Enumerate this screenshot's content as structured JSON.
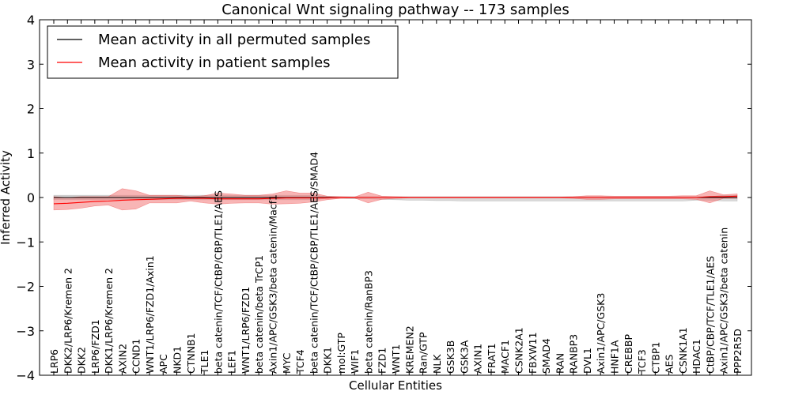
{
  "chart_data": {
    "type": "line",
    "title": "Canonical Wnt signaling pathway -- 173 samples",
    "xlabel": "Cellular Entities",
    "ylabel": "Inferred Activity",
    "ylim": [
      -4,
      4
    ],
    "yticks": [
      "4",
      "3",
      "2",
      "1",
      "0",
      "−1",
      "−2",
      "−3",
      "−4"
    ],
    "grid": false,
    "legend_position": "top-left",
    "categories": [
      "LRP6",
      "DKK2/LRP6/Kremen 2",
      "DKK2",
      "LRP6/FZD1",
      "DKK1/LRP6/Kremen 2",
      "AXIN2",
      "CCND1",
      "WNT1/LRP6/FZD1/Axin1",
      "APC",
      "NKD1",
      "CTNNB1",
      "TLE1",
      "beta catenin/TCF/CtBP/CBP/TLE1/AES",
      "LEF1",
      "WNT1/LRP6/FZD1",
      "beta catenin/beta TrCP1",
      "Axin1/APC/GSK3/beta catenin/Macf1",
      "MYC",
      "TCF4",
      "beta catenin/TCF/CtBP/CBP/TLE1/AES/SMAD4",
      "DKK1",
      "mol:GTP",
      "WIF1",
      "beta catenin/RanBP3",
      "FZD1",
      "WNT1",
      "KREMEN2",
      "Ran/GTP",
      "NLK",
      "GSK3B",
      "GSK3A",
      "AXIN1",
      "FRAT1",
      "MACF1",
      "CSNK2A1",
      "FBXW11",
      "SMAD4",
      "RAN",
      "RANBP3",
      "DVL1",
      "Axin1/APC/GSK3",
      "HNF1A",
      "CREBBP",
      "TCF3",
      "CTBP1",
      "AES",
      "CSNK1A1",
      "HDAC1",
      "CtBP/CBP/TCF/TLE1/AES",
      "Axin1/APC/GSK3/beta catenin",
      "PPP2R5D"
    ],
    "series": [
      {
        "name": "Mean activity in all permuted samples",
        "color": "#000000",
        "values": [
          0.0,
          0.0,
          0.0,
          0.0,
          0.0,
          0.0,
          0.0,
          0.0,
          0.0,
          0.0,
          0.0,
          0.0,
          0.0,
          0.0,
          0.0,
          0.0,
          0.0,
          0.0,
          0.0,
          0.0,
          0.0,
          0.0,
          0.0,
          0.0,
          0.0,
          0.0,
          0.0,
          0.0,
          0.0,
          0.0,
          0.0,
          0.0,
          0.0,
          0.0,
          0.0,
          0.0,
          0.0,
          0.0,
          0.0,
          0.0,
          0.0,
          0.0,
          0.0,
          0.0,
          0.0,
          0.0,
          0.0,
          0.0,
          0.0,
          0.0,
          0.0
        ],
        "band_upper": [
          0.05,
          0.05,
          0.05,
          0.05,
          0.05,
          0.05,
          0.05,
          0.05,
          0.05,
          0.05,
          0.05,
          0.05,
          0.05,
          0.05,
          0.05,
          0.05,
          0.05,
          0.05,
          0.05,
          0.05,
          0.02,
          0.02,
          0.02,
          0.02,
          0.02,
          0.02,
          0.02,
          0.02,
          0.02,
          0.02,
          0.02,
          0.02,
          0.02,
          0.02,
          0.02,
          0.02,
          0.02,
          0.02,
          0.02,
          0.02,
          0.02,
          0.02,
          0.02,
          0.02,
          0.02,
          0.02,
          0.02,
          0.02,
          0.02,
          0.05,
          0.05
        ],
        "band_lower": [
          -0.05,
          -0.05,
          -0.05,
          -0.05,
          -0.05,
          -0.05,
          -0.05,
          -0.05,
          -0.05,
          -0.05,
          -0.05,
          -0.05,
          -0.05,
          -0.05,
          -0.05,
          -0.05,
          -0.05,
          -0.05,
          -0.05,
          -0.05,
          -0.02,
          -0.02,
          -0.03,
          -0.03,
          -0.04,
          -0.05,
          -0.06,
          -0.06,
          -0.07,
          -0.07,
          -0.08,
          -0.08,
          -0.08,
          -0.08,
          -0.08,
          -0.08,
          -0.08,
          -0.08,
          -0.08,
          -0.08,
          -0.08,
          -0.08,
          -0.08,
          -0.08,
          -0.08,
          -0.08,
          -0.08,
          -0.06,
          -0.06,
          -0.08,
          -0.08
        ]
      },
      {
        "name": "Mean activity in patient samples",
        "color": "#ff0000",
        "values": [
          -0.14,
          -0.13,
          -0.11,
          -0.09,
          -0.08,
          -0.06,
          -0.05,
          -0.04,
          -0.03,
          -0.02,
          -0.02,
          -0.02,
          -0.03,
          -0.03,
          -0.03,
          -0.03,
          -0.02,
          -0.01,
          -0.01,
          -0.01,
          -0.01,
          0.0,
          0.0,
          0.0,
          0.0,
          0.0,
          0.0,
          0.0,
          0.0,
          0.0,
          0.0,
          0.0,
          0.0,
          0.0,
          0.0,
          0.0,
          0.0,
          0.0,
          0.0,
          0.0,
          0.0,
          0.0,
          0.0,
          0.0,
          0.0,
          0.0,
          0.0,
          0.0,
          0.02,
          0.02,
          0.03
        ],
        "band_upper": [
          0.02,
          0.0,
          0.02,
          0.02,
          0.02,
          0.2,
          0.15,
          0.05,
          0.05,
          0.05,
          0.02,
          0.04,
          0.1,
          0.08,
          0.05,
          0.05,
          0.08,
          0.15,
          0.1,
          0.1,
          0.03,
          0.02,
          0.01,
          0.12,
          0.03,
          0.02,
          0.01,
          0.01,
          0.01,
          0.01,
          0.01,
          0.01,
          0.01,
          0.01,
          0.01,
          0.01,
          0.01,
          0.01,
          0.02,
          0.04,
          0.04,
          0.03,
          0.03,
          0.03,
          0.03,
          0.03,
          0.04,
          0.04,
          0.15,
          0.06,
          0.08
        ],
        "band_lower": [
          -0.28,
          -0.27,
          -0.24,
          -0.19,
          -0.17,
          -0.28,
          -0.26,
          -0.12,
          -0.12,
          -0.12,
          -0.08,
          -0.12,
          -0.15,
          -0.13,
          -0.12,
          -0.12,
          -0.15,
          -0.14,
          -0.13,
          -0.1,
          -0.05,
          -0.02,
          -0.01,
          -0.12,
          -0.04,
          -0.02,
          -0.01,
          -0.01,
          -0.01,
          -0.01,
          -0.01,
          -0.01,
          -0.01,
          -0.01,
          -0.01,
          -0.01,
          -0.01,
          -0.01,
          -0.02,
          -0.04,
          -0.04,
          -0.03,
          -0.03,
          -0.03,
          -0.03,
          -0.03,
          -0.03,
          -0.04,
          -0.12,
          -0.02,
          -0.02
        ]
      }
    ]
  }
}
